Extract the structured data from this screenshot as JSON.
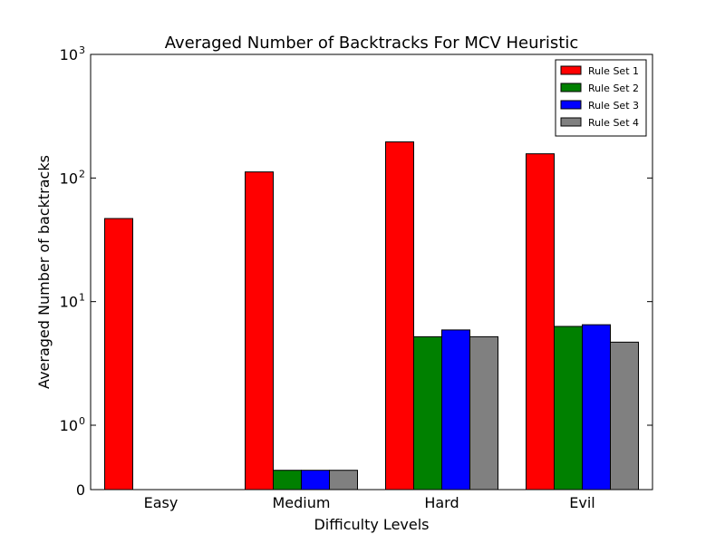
{
  "chart_data": {
    "type": "bar",
    "title": "Averaged Number of Backtracks For MCV Heuristic",
    "xlabel": "Difficulty Levels",
    "ylabel": "Averaged Number of backtracks",
    "yscale": "symlog",
    "ylim": [
      0,
      1000
    ],
    "yticks": [
      {
        "value": 0,
        "label": "0"
      },
      {
        "value": 1,
        "label": "10",
        "exp": "0"
      },
      {
        "value": 10,
        "label": "10",
        "exp": "1"
      },
      {
        "value": 100,
        "label": "10",
        "exp": "2"
      },
      {
        "value": 1000,
        "label": "10",
        "exp": "3"
      }
    ],
    "categories": [
      "Easy",
      "Medium",
      "Hard",
      "Evil"
    ],
    "series": [
      {
        "name": "Rule Set 1",
        "color": "#ff0000",
        "values": [
          47,
          112,
          196,
          157
        ]
      },
      {
        "name": "Rule Set 2",
        "color": "#008000",
        "values": [
          0,
          0.3,
          5.2,
          6.3
        ]
      },
      {
        "name": "Rule Set 3",
        "color": "#0000ff",
        "values": [
          0,
          0.3,
          5.9,
          6.5
        ]
      },
      {
        "name": "Rule Set 4",
        "color": "#808080",
        "values": [
          0,
          0.3,
          5.2,
          4.7
        ]
      }
    ],
    "legend": "top-right",
    "grid": false
  }
}
